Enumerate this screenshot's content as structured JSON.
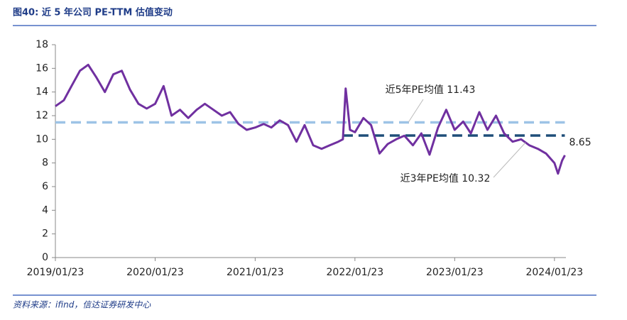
{
  "chart_data": {
    "type": "line",
    "title": "图40: 近 5 年公司 PE-TTM 估值变动",
    "source": "资料来源：ifind，信达证券研发中心",
    "xlim": [
      "2019/01/23",
      "2024/03/05"
    ],
    "xticks": [
      "2019/01/23",
      "2020/01/23",
      "2021/01/23",
      "2022/01/23",
      "2023/01/23",
      "2024/01/23"
    ],
    "ylim": [
      0,
      18
    ],
    "yticks": [
      0,
      2,
      4,
      6,
      8,
      10,
      12,
      14,
      16,
      18
    ],
    "x": [
      "2019/01/23",
      "2019/02/23",
      "2019/03/23",
      "2019/04/23",
      "2019/05/23",
      "2019/06/23",
      "2019/07/23",
      "2019/08/23",
      "2019/09/23",
      "2019/10/23",
      "2019/11/23",
      "2019/12/23",
      "2020/01/23",
      "2020/02/23",
      "2020/03/23",
      "2020/04/23",
      "2020/05/23",
      "2020/06/23",
      "2020/07/23",
      "2020/08/23",
      "2020/09/23",
      "2020/10/23",
      "2020/11/23",
      "2020/12/23",
      "2021/01/23",
      "2021/02/23",
      "2021/03/23",
      "2021/04/23",
      "2021/05/23",
      "2021/06/23",
      "2021/07/23",
      "2021/08/23",
      "2021/09/23",
      "2021/10/23",
      "2021/11/23",
      "2021/12/10",
      "2021/12/20",
      "2022/01/05",
      "2022/01/23",
      "2022/02/23",
      "2022/03/23",
      "2022/04/23",
      "2022/05/23",
      "2022/06/23",
      "2022/07/23",
      "2022/08/23",
      "2022/09/23",
      "2022/10/23",
      "2022/11/23",
      "2022/12/23",
      "2023/01/23",
      "2023/02/23",
      "2023/03/23",
      "2023/04/23",
      "2023/05/23",
      "2023/06/23",
      "2023/07/23",
      "2023/08/23",
      "2023/09/23",
      "2023/10/23",
      "2023/11/23",
      "2023/12/23",
      "2024/01/23",
      "2024/02/05",
      "2024/02/20",
      "2024/03/01"
    ],
    "series": [
      {
        "name": "PE-TTM",
        "color": "#7030a0",
        "values": [
          12.8,
          13.3,
          14.5,
          15.8,
          16.3,
          15.2,
          14.0,
          15.5,
          15.8,
          14.2,
          13.0,
          12.6,
          13.0,
          14.5,
          12.0,
          12.5,
          11.8,
          12.5,
          13.0,
          12.5,
          12.0,
          12.3,
          11.3,
          10.8,
          11.0,
          11.3,
          11.0,
          11.6,
          11.2,
          9.8,
          11.2,
          9.5,
          9.2,
          9.5,
          9.8,
          10.0,
          14.3,
          10.8,
          10.6,
          11.8,
          11.2,
          8.8,
          9.6,
          10.0,
          10.3,
          9.5,
          10.5,
          8.7,
          11.0,
          12.5,
          10.8,
          11.5,
          10.5,
          12.3,
          10.8,
          12.0,
          10.5,
          9.8,
          10.0,
          9.5,
          9.2,
          8.8,
          8.0,
          7.1,
          8.2,
          8.65
        ],
        "last_label": "8.65"
      }
    ],
    "reference_lines": [
      {
        "label": "近5年PE均值 11.43",
        "value": 11.43,
        "color": "#9dc3e6",
        "from": "2019/01/23",
        "to": "2024/03/01"
      },
      {
        "label": "近3年PE均值 10.32",
        "value": 10.32,
        "color": "#1f4e79",
        "from": "2021/12/10",
        "to": "2024/03/01"
      }
    ]
  }
}
